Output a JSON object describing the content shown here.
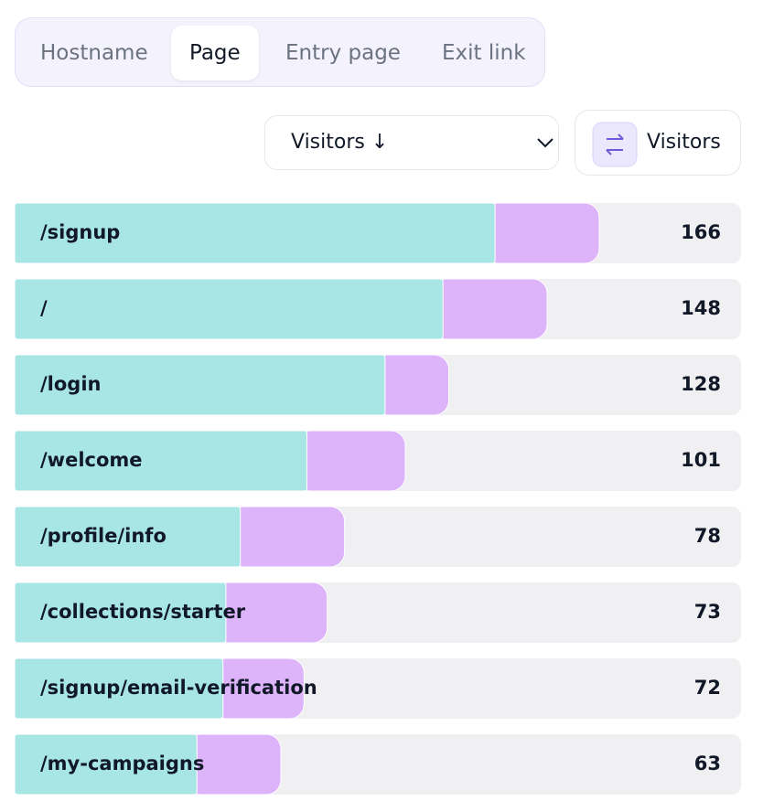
{
  "tabs": {
    "items": [
      "Hostname",
      "Page",
      "Entry page",
      "Exit link"
    ],
    "selected": 1
  },
  "sort_dropdown": {
    "label": "Visitors ↓"
  },
  "toggle_button": {
    "label": "Visitors"
  },
  "list": {
    "xlim": [
      0,
      251
    ],
    "bar_color": "#a8e6e6",
    "overlay_color": "#ddb3fa",
    "rows": [
      {
        "label": "/signup",
        "value": 166,
        "overlay": 36
      },
      {
        "label": "/",
        "value": 148,
        "overlay": 36
      },
      {
        "label": "/login",
        "value": 128,
        "overlay": 22
      },
      {
        "label": "/welcome",
        "value": 101,
        "overlay": 34
      },
      {
        "label": "/profile/info",
        "value": 78,
        "overlay": 36
      },
      {
        "label": "/collections/starter",
        "value": 73,
        "overlay": 35
      },
      {
        "label": "/signup/email-verification",
        "value": 72,
        "overlay": 28
      },
      {
        "label": "/my-campaigns",
        "value": 63,
        "overlay": 29
      }
    ]
  }
}
